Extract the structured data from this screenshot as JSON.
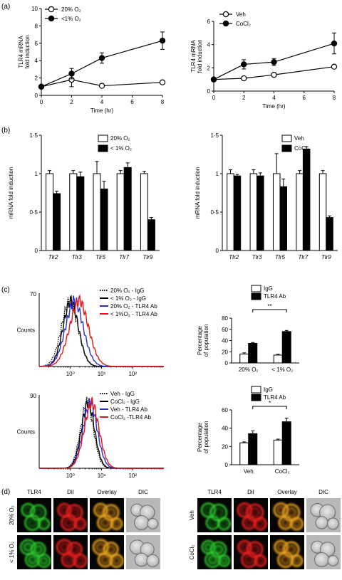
{
  "panels": {
    "a": "(a)",
    "b": "(b)",
    "c": "(c)",
    "d": "(d)"
  },
  "colors": {
    "black": "#000000",
    "blue": "#2b2bd0",
    "red": "#e01818",
    "white": "#ffffff"
  },
  "chart_data": [
    {
      "id": "a1",
      "type": "line",
      "x": [
        0,
        2,
        4,
        8
      ],
      "xlabel": "Time (hr)",
      "ylabel": "TLR4 mRNA fold induction",
      "xlim": [
        0,
        8
      ],
      "ylim": [
        0,
        10
      ],
      "xticks": [
        "0",
        "2",
        "4",
        "6",
        "8"
      ],
      "yticks": [
        "0",
        "2",
        "4",
        "6",
        "8",
        "10"
      ],
      "series": [
        {
          "name": "20% O₂",
          "marker": "open-circle",
          "values": [
            1.0,
            1.8,
            1.1,
            1.5
          ],
          "err": [
            0,
            0.8,
            0.2,
            0.2
          ]
        },
        {
          "name": "<1% O₂",
          "marker": "filled-circle",
          "values": [
            1.0,
            2.5,
            4.3,
            6.3
          ],
          "err": [
            0,
            0.6,
            0.6,
            1.0
          ]
        }
      ],
      "legend": "top-left"
    },
    {
      "id": "a2",
      "type": "line",
      "x": [
        0,
        2,
        4,
        8
      ],
      "xlabel": "Time (hr)",
      "ylabel": "TLR4 mRNA fold induction",
      "xlim": [
        0,
        8
      ],
      "ylim": [
        0,
        6
      ],
      "xticks": [
        "0",
        "2",
        "4",
        "6",
        "8"
      ],
      "yticks": [
        "0",
        "2",
        "4",
        "6"
      ],
      "series": [
        {
          "name": "Veh",
          "marker": "open-circle",
          "values": [
            1.0,
            1.1,
            1.4,
            2.1
          ],
          "err": [
            0,
            0.1,
            0.1,
            0.1
          ]
        },
        {
          "name": "CoCl₂",
          "marker": "filled-circle",
          "values": [
            1.0,
            2.3,
            2.5,
            4.1
          ],
          "err": [
            0,
            0.4,
            0.3,
            0.9
          ]
        }
      ],
      "legend": "top-left"
    },
    {
      "id": "b1",
      "type": "bar",
      "categories": [
        "Tlr2",
        "Tlr3",
        "Tlr5",
        "Tlr7",
        "Tlr9"
      ],
      "ylabel": "mRNA fold induction",
      "ylim": [
        0,
        1.5
      ],
      "yticks": [
        "0",
        "0·5",
        "1",
        "1·5"
      ],
      "series": [
        {
          "name": "20% O₂",
          "fill": "white",
          "values": [
            1.0,
            1.0,
            1.0,
            1.0,
            1.0
          ],
          "err": [
            0.04,
            0.04,
            0.16,
            0.04,
            0.03
          ]
        },
        {
          "name": "< 1% O₂",
          "fill": "black",
          "values": [
            0.74,
            0.96,
            0.8,
            1.08,
            0.4
          ],
          "err": [
            0.03,
            0.06,
            0.1,
            0.06,
            0.03
          ]
        }
      ],
      "legend": "top-right"
    },
    {
      "id": "b2",
      "type": "bar",
      "categories": [
        "Tlr2",
        "Tlr3",
        "Tlr5",
        "Tlr7",
        "Tlr9"
      ],
      "ylabel": "mRNA fold induction",
      "ylim": [
        0,
        1.5
      ],
      "yticks": [
        "0",
        "0·5",
        "1",
        "1·5"
      ],
      "series": [
        {
          "name": "Veh",
          "fill": "white",
          "values": [
            1.0,
            1.0,
            1.0,
            1.0,
            1.0
          ],
          "err": [
            0.05,
            0.05,
            0.26,
            0.04,
            0.04
          ]
        },
        {
          "name": "CoCl₂",
          "fill": "black",
          "values": [
            0.97,
            0.97,
            0.83,
            1.32,
            0.43
          ],
          "err": [
            0.02,
            0.04,
            0.1,
            0.03,
            0.02
          ]
        }
      ],
      "legend": "top-right"
    },
    {
      "id": "c1",
      "type": "line",
      "subtype": "flow-histogram",
      "ylabel": "Counts",
      "xscale": "log",
      "xticks": [
        "10⁰",
        "10¹",
        "10²"
      ],
      "yticks": [
        "0",
        "70"
      ],
      "ylim": [
        0,
        70
      ],
      "series": [
        {
          "name": "20% O₂ - IgG",
          "color": "#000000",
          "style": "dotted",
          "peak_log": 0.0,
          "width": 0.28
        },
        {
          "name": "< 1% O₂ - IgG",
          "color": "#000000",
          "style": "solid",
          "peak_log": 0.03,
          "width": 0.26
        },
        {
          "name": "20% O₂ - TLR4 Ab",
          "color": "#2b2bd0",
          "style": "solid",
          "peak_log": 0.15,
          "width": 0.3
        },
        {
          "name": "< 1%O₂ - TLR4 Ab",
          "color": "#e01818",
          "style": "solid",
          "peak_log": 0.3,
          "width": 0.32
        }
      ],
      "legend": "top-right"
    },
    {
      "id": "c2",
      "type": "bar",
      "categories": [
        "20% O₂",
        "< 1% O₂"
      ],
      "ylabel": "Percentage of population",
      "ylim": [
        0,
        80
      ],
      "yticks": [
        "0",
        "20",
        "40",
        "60",
        "80"
      ],
      "series": [
        {
          "name": "IgG",
          "fill": "white",
          "values": [
            16,
            14
          ],
          "err": [
            2,
            1.5
          ]
        },
        {
          "name": "TLR4 Ab",
          "fill": "black",
          "values": [
            35,
            56
          ],
          "err": [
            1.5,
            2
          ]
        }
      ],
      "annotation": "**",
      "legend": "top"
    },
    {
      "id": "c3",
      "type": "line",
      "subtype": "flow-histogram",
      "ylabel": "Counts",
      "xscale": "log",
      "xticks": [
        "10⁰",
        "10¹",
        "10²"
      ],
      "yticks": [
        "0",
        "90"
      ],
      "ylim": [
        0,
        90
      ],
      "series": [
        {
          "name": "Veh - IgG",
          "color": "#000000",
          "style": "dotted",
          "peak_log": 0.55,
          "width": 0.22
        },
        {
          "name": "CoCl₂ - IgG",
          "color": "#000000",
          "style": "solid",
          "peak_log": 0.58,
          "width": 0.22
        },
        {
          "name": "Veh - TLR4 Ab",
          "color": "#2b2bd0",
          "style": "solid",
          "peak_log": 0.65,
          "width": 0.24
        },
        {
          "name": "CoCl₂ -TLR4 Ab",
          "color": "#e01818",
          "style": "solid",
          "peak_log": 0.7,
          "width": 0.25
        }
      ],
      "legend": "top-right"
    },
    {
      "id": "c4",
      "type": "bar",
      "categories": [
        "Veh",
        "CoCl₂"
      ],
      "ylabel": "Percentage of population",
      "ylim": [
        0,
        60
      ],
      "yticks": [
        "0",
        "20",
        "40",
        "60"
      ],
      "series": [
        {
          "name": "IgG",
          "fill": "white",
          "values": [
            24,
            27
          ],
          "err": [
            1,
            1
          ]
        },
        {
          "name": "TLR4 Ab",
          "fill": "black",
          "values": [
            34,
            47
          ],
          "err": [
            3,
            4
          ]
        }
      ],
      "annotation": "*",
      "legend": "top"
    }
  ],
  "micrographs": {
    "columns": [
      "TLR4",
      "DiI",
      "Overlay",
      "DIC"
    ],
    "left_rows": [
      "20% O₂",
      "< 1% O₂"
    ],
    "right_rows": [
      "Veh",
      "CoCl₂"
    ]
  }
}
